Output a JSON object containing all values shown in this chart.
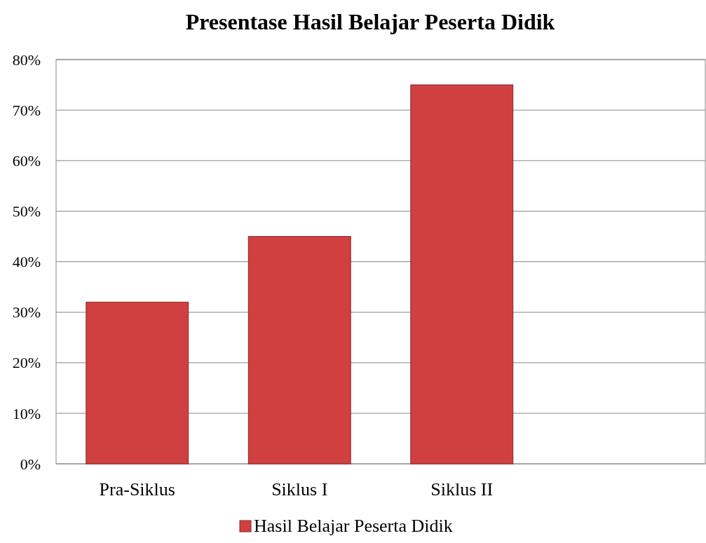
{
  "chart_data": {
    "type": "bar",
    "title": "Presentase Hasil Belajar Peserta Didik",
    "categories": [
      "Pra-Siklus",
      "Siklus I",
      "Siklus II",
      null
    ],
    "series": [
      {
        "name": "Hasil Belajar Peserta Didik",
        "color": "#d04040",
        "values": [
          32,
          45,
          75,
          null
        ]
      }
    ],
    "ylim": [
      0,
      80
    ],
    "yticks": [
      {
        "value": 0,
        "label": "0%"
      },
      {
        "value": 10,
        "label": "10%"
      },
      {
        "value": 20,
        "label": "20%"
      },
      {
        "value": 30,
        "label": "30%"
      },
      {
        "value": 40,
        "label": "40%"
      },
      {
        "value": 50,
        "label": "50%"
      },
      {
        "value": 60,
        "label": "60%"
      },
      {
        "value": 70,
        "label": "70%"
      },
      {
        "value": 80,
        "label": "80%"
      }
    ],
    "grid": "y",
    "legend": "bottom"
  }
}
